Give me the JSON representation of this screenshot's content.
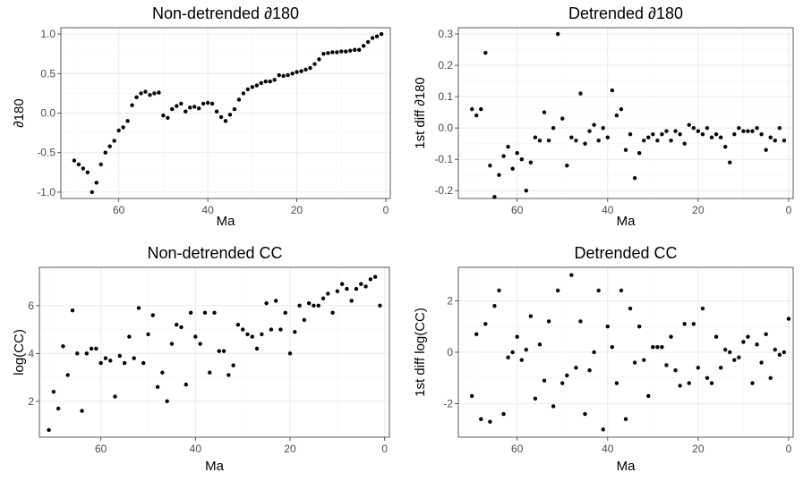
{
  "chart_data": [
    {
      "type": "scatter",
      "title": "Non-detrended ∂180",
      "xlabel": "Ma",
      "ylabel": "∂180",
      "xlim": [
        73,
        -1
      ],
      "ylim": [
        -1.08,
        1.08
      ],
      "xticks": [
        60,
        40,
        20,
        0
      ],
      "yticks": [
        -1.0,
        -0.5,
        0.0,
        0.5,
        1.0
      ],
      "ytick_labels": [
        "-1.0",
        "-0.5",
        "0.0",
        "0.5",
        "1.0"
      ],
      "points": [
        [
          70,
          -0.6
        ],
        [
          69,
          -0.65
        ],
        [
          68,
          -0.7
        ],
        [
          67,
          -0.75
        ],
        [
          66,
          -1.0
        ],
        [
          65,
          -0.88
        ],
        [
          64,
          -0.65
        ],
        [
          63,
          -0.5
        ],
        [
          62,
          -0.42
        ],
        [
          61,
          -0.35
        ],
        [
          60,
          -0.22
        ],
        [
          59,
          -0.18
        ],
        [
          58,
          -0.1
        ],
        [
          57,
          0.1
        ],
        [
          56,
          0.2
        ],
        [
          55,
          0.25
        ],
        [
          54,
          0.27
        ],
        [
          53,
          0.23
        ],
        [
          52,
          0.25
        ],
        [
          51,
          0.26
        ],
        [
          50,
          -0.03
        ],
        [
          49,
          -0.06
        ],
        [
          48,
          0.05
        ],
        [
          47,
          0.09
        ],
        [
          46,
          0.12
        ],
        [
          45,
          0.02
        ],
        [
          44,
          0.07
        ],
        [
          43,
          0.08
        ],
        [
          42,
          0.06
        ],
        [
          41,
          0.12
        ],
        [
          40,
          0.13
        ],
        [
          39,
          0.12
        ],
        [
          38,
          0.02
        ],
        [
          37,
          -0.05
        ],
        [
          36,
          -0.1
        ],
        [
          35,
          -0.02
        ],
        [
          34,
          0.05
        ],
        [
          33,
          0.17
        ],
        [
          32,
          0.25
        ],
        [
          31,
          0.3
        ],
        [
          30,
          0.33
        ],
        [
          29,
          0.35
        ],
        [
          28,
          0.38
        ],
        [
          27,
          0.4
        ],
        [
          26,
          0.4
        ],
        [
          25,
          0.42
        ],
        [
          24,
          0.48
        ],
        [
          23,
          0.47
        ],
        [
          22,
          0.48
        ],
        [
          21,
          0.5
        ],
        [
          20,
          0.52
        ],
        [
          19,
          0.53
        ],
        [
          18,
          0.55
        ],
        [
          17,
          0.57
        ],
        [
          16,
          0.62
        ],
        [
          15,
          0.68
        ],
        [
          14,
          0.75
        ],
        [
          13,
          0.76
        ],
        [
          12,
          0.77
        ],
        [
          11,
          0.77
        ],
        [
          10,
          0.78
        ],
        [
          9,
          0.78
        ],
        [
          8,
          0.79
        ],
        [
          7,
          0.8
        ],
        [
          6,
          0.8
        ],
        [
          5,
          0.85
        ],
        [
          4,
          0.9
        ],
        [
          3,
          0.95
        ],
        [
          2,
          0.97
        ],
        [
          1,
          1.0
        ]
      ]
    },
    {
      "type": "scatter",
      "title": "Detrended ∂180",
      "xlabel": "Ma",
      "ylabel": "1st diff ∂180",
      "xlim": [
        73,
        -1
      ],
      "ylim": [
        -0.225,
        0.32
      ],
      "xticks": [
        60,
        40,
        20,
        0
      ],
      "yticks": [
        -0.2,
        -0.1,
        0.0,
        0.1,
        0.2,
        0.3
      ],
      "ytick_labels": [
        "-0.2",
        "-0.1",
        "0.0",
        "0.1",
        "0.2",
        "0.3"
      ],
      "points": [
        [
          70,
          0.06
        ],
        [
          69,
          0.04
        ],
        [
          68,
          0.06
        ],
        [
          67,
          0.24
        ],
        [
          66,
          -0.12
        ],
        [
          65,
          -0.22
        ],
        [
          64,
          -0.15
        ],
        [
          63,
          -0.09
        ],
        [
          62,
          -0.06
        ],
        [
          61,
          -0.13
        ],
        [
          60,
          -0.08
        ],
        [
          59,
          -0.1
        ],
        [
          58,
          -0.2
        ],
        [
          57,
          -0.11
        ],
        [
          56,
          -0.03
        ],
        [
          55,
          -0.04
        ],
        [
          54,
          0.05
        ],
        [
          53,
          -0.04
        ],
        [
          52,
          0.0
        ],
        [
          51,
          0.3
        ],
        [
          50,
          0.03
        ],
        [
          49,
          -0.12
        ],
        [
          48,
          -0.03
        ],
        [
          47,
          -0.04
        ],
        [
          46,
          0.11
        ],
        [
          45,
          -0.05
        ],
        [
          44,
          -0.01
        ],
        [
          43,
          0.01
        ],
        [
          42,
          -0.04
        ],
        [
          41,
          0.0
        ],
        [
          40,
          -0.03
        ],
        [
          39,
          0.12
        ],
        [
          38,
          0.04
        ],
        [
          37,
          0.06
        ],
        [
          36,
          -0.07
        ],
        [
          35,
          -0.02
        ],
        [
          34,
          -0.16
        ],
        [
          33,
          -0.08
        ],
        [
          32,
          -0.04
        ],
        [
          31,
          -0.03
        ],
        [
          30,
          -0.02
        ],
        [
          29,
          -0.04
        ],
        [
          28,
          -0.02
        ],
        [
          27,
          -0.01
        ],
        [
          26,
          -0.04
        ],
        [
          25,
          -0.01
        ],
        [
          24,
          -0.02
        ],
        [
          23,
          -0.05
        ],
        [
          22,
          0.01
        ],
        [
          21,
          0.0
        ],
        [
          20,
          -0.01
        ],
        [
          19,
          -0.02
        ],
        [
          18,
          0.0
        ],
        [
          17,
          -0.03
        ],
        [
          16,
          -0.02
        ],
        [
          15,
          -0.03
        ],
        [
          14,
          -0.06
        ],
        [
          13,
          -0.11
        ],
        [
          12,
          -0.02
        ],
        [
          11,
          0.0
        ],
        [
          10,
          -0.01
        ],
        [
          9,
          -0.01
        ],
        [
          8,
          -0.01
        ],
        [
          7,
          0.0
        ],
        [
          6,
          -0.02
        ],
        [
          5,
          -0.07
        ],
        [
          4,
          -0.03
        ],
        [
          3,
          -0.04
        ],
        [
          2,
          0.0
        ],
        [
          1,
          -0.04
        ]
      ]
    },
    {
      "type": "scatter",
      "title": "Non-detrended CC",
      "xlabel": "Ma",
      "ylabel": "log(CC)",
      "xlim": [
        73,
        -1
      ],
      "ylim": [
        0.5,
        7.6
      ],
      "xticks": [
        60,
        40,
        20,
        0
      ],
      "yticks": [
        2,
        4,
        6
      ],
      "ytick_labels": [
        "2",
        "4",
        "6"
      ],
      "points": [
        [
          71,
          0.8
        ],
        [
          70,
          2.4
        ],
        [
          69,
          1.7
        ],
        [
          68,
          4.3
        ],
        [
          67,
          3.1
        ],
        [
          66,
          5.8
        ],
        [
          65,
          4.0
        ],
        [
          64,
          1.6
        ],
        [
          63,
          4.0
        ],
        [
          62,
          4.2
        ],
        [
          61,
          4.2
        ],
        [
          60,
          3.6
        ],
        [
          59,
          3.8
        ],
        [
          58,
          3.7
        ],
        [
          57,
          2.2
        ],
        [
          56,
          3.9
        ],
        [
          55,
          3.6
        ],
        [
          54,
          4.7
        ],
        [
          53,
          3.8
        ],
        [
          52,
          5.9
        ],
        [
          51,
          3.6
        ],
        [
          50,
          4.8
        ],
        [
          49,
          5.6
        ],
        [
          48,
          2.6
        ],
        [
          47,
          3.2
        ],
        [
          46,
          2.0
        ],
        [
          45,
          4.4
        ],
        [
          44,
          5.2
        ],
        [
          43,
          5.1
        ],
        [
          42,
          2.7
        ],
        [
          41,
          5.7
        ],
        [
          40,
          4.7
        ],
        [
          39,
          4.4
        ],
        [
          38,
          5.7
        ],
        [
          37,
          3.2
        ],
        [
          36,
          5.7
        ],
        [
          35,
          4.1
        ],
        [
          34,
          4.1
        ],
        [
          33,
          3.1
        ],
        [
          32,
          3.5
        ],
        [
          31,
          5.2
        ],
        [
          30,
          5.0
        ],
        [
          29,
          4.8
        ],
        [
          28,
          4.7
        ],
        [
          27,
          4.2
        ],
        [
          26,
          4.8
        ],
        [
          25,
          6.1
        ],
        [
          24,
          5.0
        ],
        [
          23,
          6.2
        ],
        [
          22,
          5.0
        ],
        [
          21,
          5.7
        ],
        [
          20,
          4.0
        ],
        [
          19,
          4.9
        ],
        [
          18,
          6.0
        ],
        [
          17,
          5.4
        ],
        [
          16,
          6.1
        ],
        [
          15,
          6.0
        ],
        [
          14,
          6.0
        ],
        [
          13,
          6.3
        ],
        [
          12,
          6.5
        ],
        [
          11,
          5.7
        ],
        [
          10,
          6.6
        ],
        [
          9,
          6.9
        ],
        [
          8,
          6.7
        ],
        [
          7,
          6.2
        ],
        [
          6,
          6.7
        ],
        [
          5,
          6.9
        ],
        [
          4,
          6.8
        ],
        [
          3,
          7.1
        ],
        [
          2,
          7.2
        ],
        [
          1,
          6.0
        ]
      ]
    },
    {
      "type": "scatter",
      "title": "Detrended CC",
      "xlabel": "Ma",
      "ylabel": "1st diff log(CC)",
      "xlim": [
        73,
        -1
      ],
      "ylim": [
        -3.3,
        3.3
      ],
      "xticks": [
        60,
        40,
        20,
        0
      ],
      "yticks": [
        -2,
        0,
        2
      ],
      "ytick_labels": [
        "-2",
        "0",
        "2"
      ],
      "points": [
        [
          70,
          -1.7
        ],
        [
          69,
          0.7
        ],
        [
          68,
          -2.6
        ],
        [
          67,
          1.1
        ],
        [
          66,
          -2.7
        ],
        [
          65,
          1.8
        ],
        [
          64,
          2.4
        ],
        [
          63,
          -2.4
        ],
        [
          62,
          -0.2
        ],
        [
          61,
          0.0
        ],
        [
          60,
          0.6
        ],
        [
          59,
          -0.3
        ],
        [
          58,
          0.1
        ],
        [
          57,
          1.4
        ],
        [
          56,
          -1.8
        ],
        [
          55,
          0.3
        ],
        [
          54,
          -1.1
        ],
        [
          53,
          1.2
        ],
        [
          52,
          -2.1
        ],
        [
          51,
          2.4
        ],
        [
          50,
          -1.2
        ],
        [
          49,
          -0.9
        ],
        [
          48,
          3.0
        ],
        [
          47,
          -0.6
        ],
        [
          46,
          1.2
        ],
        [
          45,
          -2.4
        ],
        [
          44,
          -0.7
        ],
        [
          43,
          0.0
        ],
        [
          42,
          2.4
        ],
        [
          41,
          -3.0
        ],
        [
          40,
          1.0
        ],
        [
          39,
          0.2
        ],
        [
          38,
          -1.2
        ],
        [
          37,
          2.4
        ],
        [
          36,
          -2.6
        ],
        [
          35,
          1.7
        ],
        [
          34,
          -0.4
        ],
        [
          33,
          1.0
        ],
        [
          32,
          -0.3
        ],
        [
          31,
          -1.7
        ],
        [
          30,
          0.2
        ],
        [
          29,
          0.2
        ],
        [
          28,
          0.2
        ],
        [
          27,
          -0.5
        ],
        [
          26,
          0.6
        ],
        [
          25,
          -0.7
        ],
        [
          24,
          -1.3
        ],
        [
          23,
          1.1
        ],
        [
          22,
          -1.2
        ],
        [
          21,
          1.1
        ],
        [
          20,
          -0.6
        ],
        [
          19,
          1.7
        ],
        [
          18,
          -1.0
        ],
        [
          17,
          -1.2
        ],
        [
          16,
          0.6
        ],
        [
          15,
          -0.6
        ],
        [
          14,
          0.1
        ],
        [
          13,
          0.0
        ],
        [
          12,
          -0.3
        ],
        [
          11,
          -0.2
        ],
        [
          10,
          0.4
        ],
        [
          9,
          0.6
        ],
        [
          8,
          -1.2
        ],
        [
          7,
          0.3
        ],
        [
          6,
          -0.4
        ],
        [
          5,
          0.7
        ],
        [
          4,
          -1.0
        ],
        [
          3,
          0.1
        ],
        [
          2,
          -0.1
        ],
        [
          1,
          0.0
        ],
        [
          0,
          1.3
        ]
      ]
    }
  ]
}
